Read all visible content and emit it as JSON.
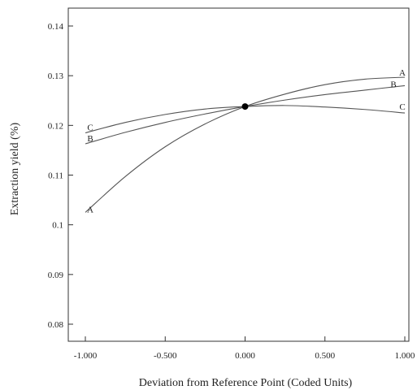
{
  "chart_data": {
    "type": "line",
    "title": "",
    "xlabel": "Deviation from Reference Point (Coded Units)",
    "ylabel": "Extraction yield (%)",
    "xlim": [
      -1.0,
      1.0
    ],
    "ylim": [
      0.075,
      0.145
    ],
    "x_ticks": [
      -1.0,
      -0.5,
      0.0,
      0.5,
      1.0
    ],
    "x_tick_labels": [
      "-1.000",
      "-0.500",
      "0.000",
      "0.500",
      "1.000"
    ],
    "y_ticks": [
      0.08,
      0.09,
      0.1,
      0.11,
      0.12,
      0.13,
      0.14
    ],
    "y_tick_labels": [
      "0.08",
      "0.09",
      "0.1",
      "0.11",
      "0.12",
      "0.13",
      "0.14"
    ],
    "grid": false,
    "legend": "none",
    "reference_point": {
      "x": 0.0,
      "y": 0.1238
    },
    "x": [
      -1.0,
      -0.75,
      -0.5,
      -0.25,
      0.0,
      0.25,
      0.5,
      0.75,
      1.0
    ],
    "series": [
      {
        "name": "A",
        "values": [
          0.1025,
          0.1097,
          0.1157,
          0.1203,
          0.1238,
          0.1263,
          0.1282,
          0.1293,
          0.1297
        ]
      },
      {
        "name": "B",
        "values": [
          0.1163,
          0.1186,
          0.1206,
          0.1223,
          0.1238,
          0.1251,
          0.1262,
          0.1271,
          0.128
        ]
      },
      {
        "name": "C",
        "values": [
          0.1185,
          0.1206,
          0.1222,
          0.1233,
          0.1238,
          0.124,
          0.1237,
          0.1232,
          0.1225
        ]
      }
    ],
    "end_labels": {
      "left": [
        {
          "text": "A",
          "series": "A"
        },
        {
          "text": "B",
          "series": "B"
        },
        {
          "text": "C",
          "series": "C"
        }
      ],
      "right": [
        {
          "text": "A",
          "series": "A"
        },
        {
          "text": "B",
          "series": "B"
        },
        {
          "text": "C",
          "series": "C"
        }
      ]
    }
  }
}
